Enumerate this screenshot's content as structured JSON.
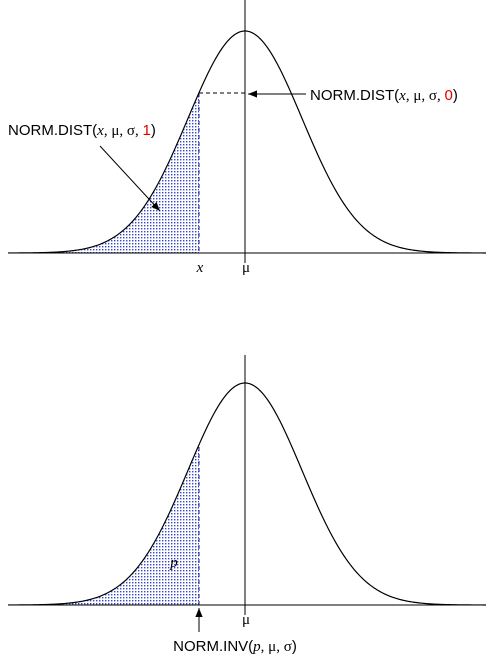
{
  "top_panel": {
    "cdf_label": [
      "NORM.DIST(",
      "x",
      ", ",
      "μ",
      ", ",
      "σ",
      ", ",
      "1",
      ")"
    ],
    "pdf_label": [
      "NORM.DIST(",
      "x",
      ", ",
      "μ",
      ", ",
      "σ",
      ", ",
      "0",
      ")"
    ],
    "x_label": "x",
    "mu_label": "μ"
  },
  "bottom_panel": {
    "area_label": "p",
    "mu_label": "μ",
    "inv_label": [
      "NORM.INV(",
      "p",
      ", ",
      "μ",
      ", ",
      "σ",
      ")"
    ]
  }
}
